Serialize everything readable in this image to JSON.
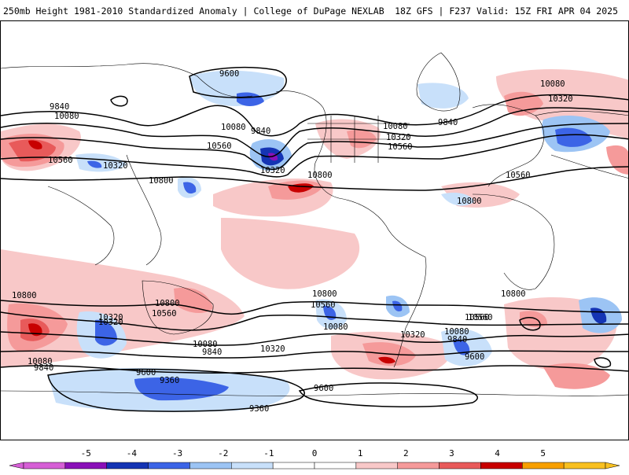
{
  "header": {
    "title_left": "250mb Height 1981-2010 Standardized Anomaly | College of DuPage NEXLAB",
    "title_right": "18Z GFS | F237 Valid: 15Z FRI APR 04 2025"
  },
  "map": {
    "contour_labels": [
      "9600",
      "9840",
      "10080",
      "10560",
      "10320",
      "10080",
      "9840",
      "10560",
      "10320",
      "10800",
      "10080",
      "10320",
      "10560",
      "10800",
      "9840",
      "10080",
      "10320",
      "10560",
      "10800",
      "10560",
      "10800",
      "10800",
      "10320",
      "10560",
      "10800",
      "10560",
      "10080",
      "10080",
      "10320",
      "9840",
      "9840",
      "10320",
      "10080",
      "10800",
      "10560",
      "10080",
      "10320",
      "9840",
      "9600",
      "9600",
      "9360",
      "9600",
      "9360"
    ]
  },
  "colorbar": {
    "ticks": [
      "-5",
      "-4",
      "-3",
      "-2",
      "-1",
      "0",
      "1",
      "2",
      "3",
      "4",
      "5"
    ],
    "colors": [
      "#d65fd6",
      "#8a10b8",
      "#1434b4",
      "#3c64e6",
      "#9cc4f4",
      "#c8e0fa",
      "#ffffff",
      "#ffffff",
      "#f8c8c8",
      "#f59a9a",
      "#e85a5a",
      "#c80000",
      "#f8a000",
      "#f8c020"
    ]
  }
}
